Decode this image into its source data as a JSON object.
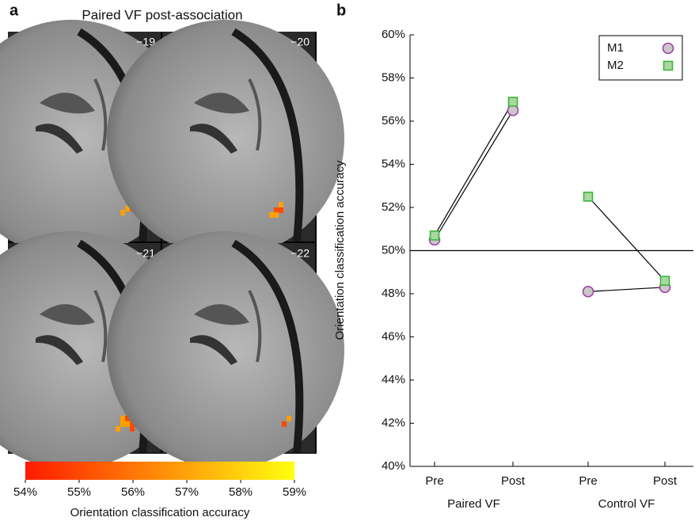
{
  "chart_data": [
    {
      "type": "colorbar",
      "panel": "a",
      "title": "Paired VF post-association",
      "slices": [
        "−19",
        "−20",
        "−21",
        "−22"
      ],
      "label": "Orientation classification accuracy",
      "clim": [
        54,
        59
      ],
      "ticks": [
        {
          "value": 54,
          "label": "54%"
        },
        {
          "value": 55,
          "label": "55%"
        },
        {
          "value": 56,
          "label": "56%"
        },
        {
          "value": 57,
          "label": "57%"
        },
        {
          "value": 58,
          "label": "58%"
        },
        {
          "value": 59,
          "label": "59%"
        }
      ],
      "colors": [
        "#ff1a00",
        "#ffff10"
      ]
    },
    {
      "type": "line",
      "panel": "b",
      "categories": [
        "Pre",
        "Post",
        "Pre",
        "Post"
      ],
      "groups": [
        "Paired VF",
        "Control VF"
      ],
      "ylabel": "Orientation classification accuracy",
      "ylim": [
        40,
        60
      ],
      "yticks": [
        {
          "value": 40,
          "label": "40%"
        },
        {
          "value": 42,
          "label": "42%"
        },
        {
          "value": 44,
          "label": "44%"
        },
        {
          "value": 46,
          "label": "46%"
        },
        {
          "value": 48,
          "label": "48%"
        },
        {
          "value": 50,
          "label": "50%"
        },
        {
          "value": 52,
          "label": "52%"
        },
        {
          "value": 54,
          "label": "54%"
        },
        {
          "value": 56,
          "label": "56%"
        },
        {
          "value": 58,
          "label": "58%"
        },
        {
          "value": 60,
          "label": "60%"
        }
      ],
      "refline": 50,
      "legend": "upper right",
      "series": [
        {
          "name": "M1",
          "marker": "circle",
          "color": "#a040a8",
          "fill": "#c8c8c8",
          "values": [
            50.5,
            56.5,
            48.1,
            48.3
          ]
        },
        {
          "name": "M2",
          "marker": "square",
          "color": "#3cb43c",
          "fill": "#a8d8a0",
          "values": [
            50.7,
            56.9,
            52.5,
            48.6
          ]
        }
      ]
    }
  ]
}
